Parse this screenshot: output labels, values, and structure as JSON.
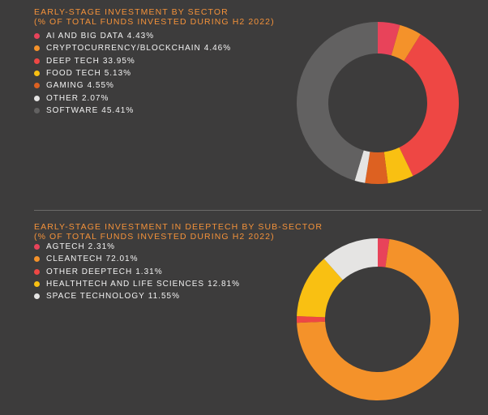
{
  "chart_data": [
    {
      "type": "pie",
      "title": "EARLY-STAGE INVESTMENT BY SECTOR",
      "subtitle": "(% OF TOTAL FUNDS INVESTED DURING H2 2022)",
      "labels": [
        "AI AND BIG DATA",
        "CRYPTOCURRENCY/BLOCKCHAIN",
        "DEEP TECH",
        "FOOD TECH",
        "GAMING",
        "OTHER",
        "SOFTWARE"
      ],
      "values": [
        4.43,
        4.46,
        33.95,
        5.13,
        4.55,
        2.07,
        45.41
      ],
      "value_labels": [
        "4.43%",
        "4.46%",
        "33.95%",
        "5.13%",
        "4.55%",
        "2.07%",
        "45.41%"
      ],
      "colors": [
        "#e8435a",
        "#f4922a",
        "#ee4744",
        "#f9c012",
        "#dd6121",
        "#e5e4e3",
        "#626161"
      ],
      "legend_position": "left",
      "donut": true
    },
    {
      "type": "pie",
      "title": "EARLY-STAGE INVESTMENT IN DEEPTECH BY SUB-SECTOR",
      "subtitle": "(% OF TOTAL FUNDS INVESTED DURING H2 2022)",
      "labels": [
        "AGTECH",
        "CLEANTECH",
        "OTHER DEEPTECH",
        "HEALTHTECH AND LIFE SCIENCES",
        "SPACE TECHNOLOGY"
      ],
      "values": [
        2.31,
        72.01,
        1.31,
        12.81,
        11.55
      ],
      "value_labels": [
        "2.31%",
        "72.01%",
        "1.31%",
        "12.81%",
        "11.55%"
      ],
      "colors": [
        "#e8435a",
        "#f4922a",
        "#ee4744",
        "#f9c012",
        "#e5e4e3"
      ],
      "legend_position": "left",
      "donut": true
    }
  ],
  "colors": {
    "background": "#3d3c3c",
    "title": "#f4923a",
    "legend_text": "#f2f2f2",
    "divider": "#6b6a69"
  }
}
